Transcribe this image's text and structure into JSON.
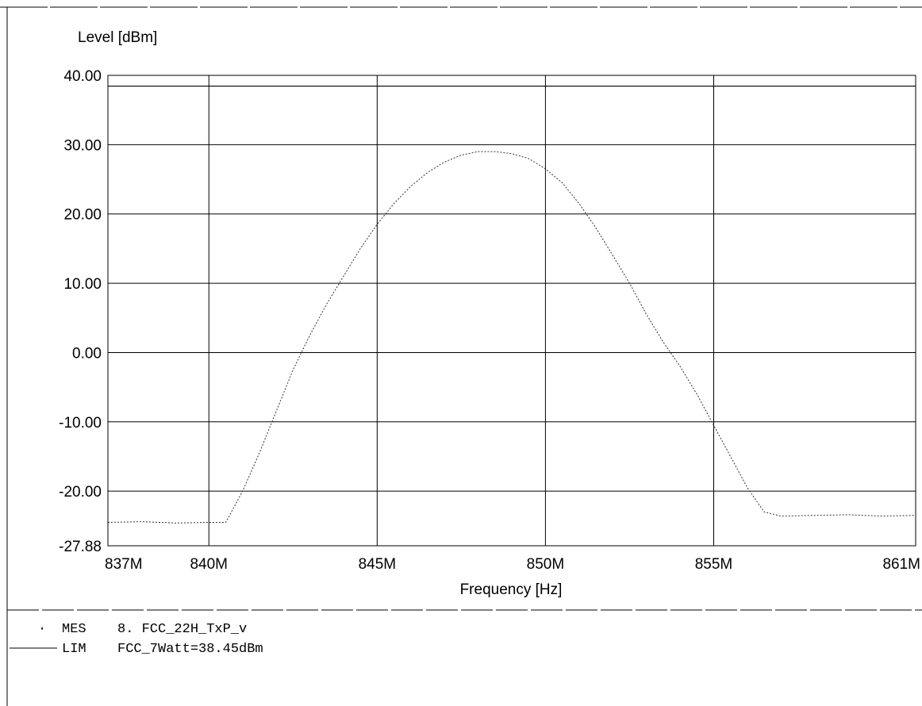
{
  "chart_data": {
    "type": "line",
    "ylabel": "Level [dBm]",
    "xlabel": "Frequency [Hz]",
    "ylim": [
      -27.88,
      40.0
    ],
    "xlim": [
      837,
      861
    ],
    "x_unit": "MHz",
    "y_tick_labels": [
      "40.00",
      "30.00",
      "20.00",
      "10.00",
      "0.00",
      "-10.00",
      "-20.00",
      "-27.88"
    ],
    "y_tick_values": [
      40,
      30,
      20,
      10,
      0,
      -10,
      -20,
      -27.88
    ],
    "x_tick_labels": [
      "837M",
      "840M",
      "845M",
      "850M",
      "855M",
      "861M"
    ],
    "x_tick_values": [
      837,
      840,
      845,
      850,
      855,
      861
    ],
    "grid": true,
    "limit_line": {
      "name": "LIM",
      "value": 38.45
    },
    "series": [
      {
        "name": "MES",
        "style": "dotted",
        "x": [
          837.0,
          838.0,
          839.0,
          840.0,
          840.5,
          841.0,
          841.5,
          842.0,
          842.5,
          843.0,
          843.5,
          844.0,
          844.5,
          845.0,
          845.5,
          846.0,
          846.5,
          847.0,
          847.5,
          848.0,
          848.5,
          849.0,
          849.5,
          850.0,
          850.5,
          851.0,
          851.5,
          852.0,
          852.5,
          853.0,
          853.5,
          854.0,
          854.5,
          855.0,
          855.5,
          856.0,
          856.5,
          857.0,
          858.0,
          859.0,
          860.0,
          861.0
        ],
        "y": [
          -24.5,
          -24.4,
          -24.6,
          -24.5,
          -24.5,
          -20.0,
          -14.5,
          -8.5,
          -2.5,
          2.5,
          7.0,
          11.0,
          15.0,
          18.5,
          21.5,
          24.0,
          26.0,
          27.5,
          28.5,
          29.0,
          29.0,
          28.7,
          28.0,
          26.5,
          24.5,
          21.5,
          18.0,
          14.0,
          10.0,
          5.5,
          1.5,
          -2.0,
          -6.0,
          -10.5,
          -15.0,
          -19.5,
          -23.0,
          -23.6,
          -23.5,
          -23.4,
          -23.6,
          -23.5
        ]
      }
    ]
  },
  "legend": [
    {
      "key": "MES",
      "text": "8. FCC_22H_TxP_v"
    },
    {
      "key": "LIM",
      "text": "FCC_7Watt=38.45dBm"
    }
  ]
}
